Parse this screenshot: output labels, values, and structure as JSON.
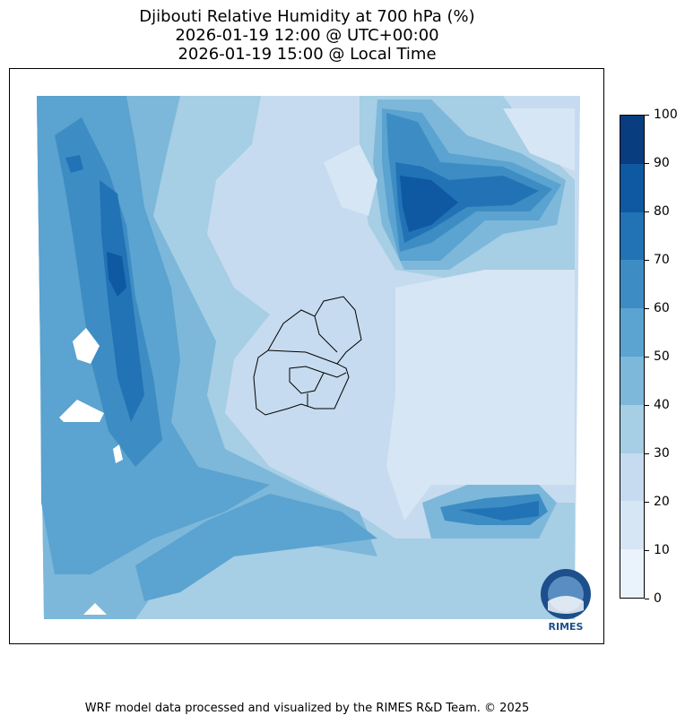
{
  "title": {
    "line1": "Djibouti Relative Humidity at 700 hPa (%)",
    "line2": "2026-01-19 12:00 @ UTC+00:00",
    "line3": "2026-01-19 15:00 @ Local Time"
  },
  "colorbar": {
    "ticks": [
      "0",
      "10",
      "20",
      "30",
      "40",
      "50",
      "60",
      "70",
      "80",
      "90",
      "100"
    ],
    "colors": [
      "#eaf2fb",
      "#d6e6f4",
      "#c6dbef",
      "#a6cee4",
      "#7db8da",
      "#5ba3d0",
      "#3d8dc4",
      "#2272b6",
      "#0e59a2",
      "#083d7f"
    ]
  },
  "logo": {
    "text": "RIMES"
  },
  "footer": "WRF model data processed and visualized by the RIMES R&D Team. © 2025"
}
